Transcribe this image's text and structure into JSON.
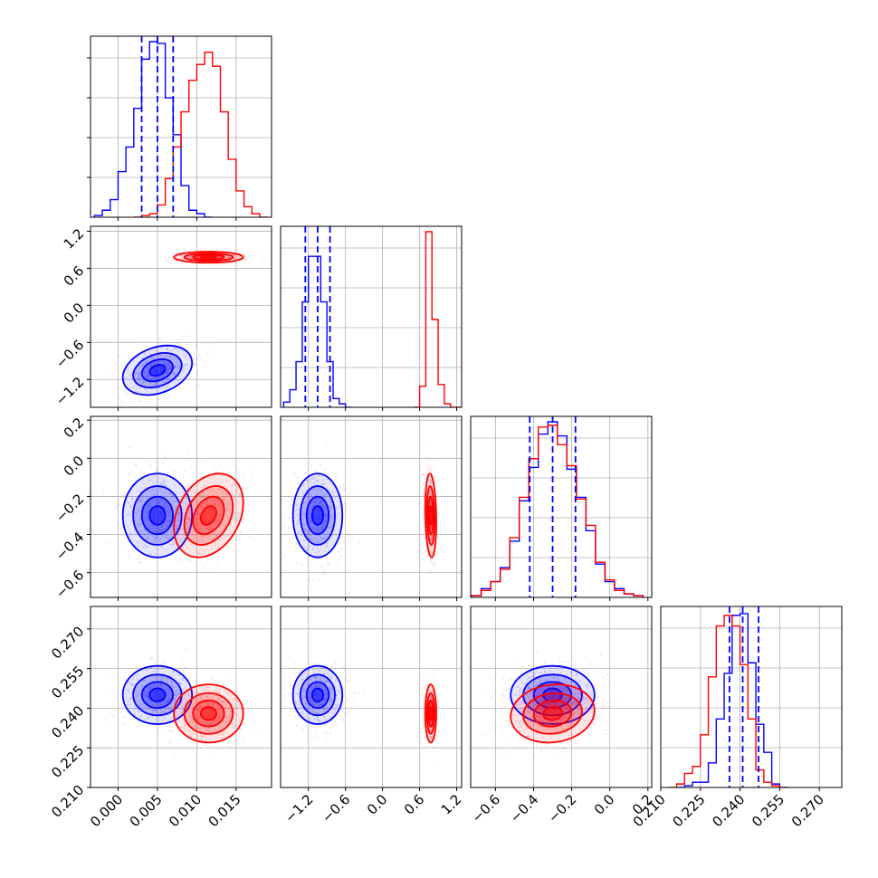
{
  "chart_data": {
    "type": "scatter",
    "title": "",
    "variant": "corner-plot",
    "grid": true,
    "parameters": [
      {
        "name": "",
        "range": [
          -0.0035,
          0.0195
        ],
        "ticks": [
          0.0,
          0.005,
          0.01,
          0.015
        ],
        "tick_labels": [
          "0.000",
          "0.005",
          "0.010",
          "0.015"
        ]
      },
      {
        "name": "",
        "range": [
          -1.65,
          1.28
        ],
        "ticks": [
          -1.2,
          -0.6,
          0.0,
          0.6,
          1.2
        ],
        "tick_labels": [
          "−1.2",
          "−0.6",
          "0.0",
          "0.6",
          "1.2"
        ]
      },
      {
        "name": "",
        "range": [
          -0.73,
          0.22
        ],
        "ticks": [
          -0.6,
          -0.4,
          -0.2,
          0.0,
          0.2
        ],
        "tick_labels": [
          "−0.6",
          "−0.4",
          "−0.2",
          "0.0",
          "0.2"
        ]
      },
      {
        "name": "",
        "range": [
          0.21,
          0.2785
        ],
        "ticks": [
          0.21,
          0.225,
          0.24,
          0.255,
          0.27
        ],
        "tick_labels": [
          "0.210",
          "0.225",
          "0.240",
          "0.255",
          "0.270"
        ]
      }
    ],
    "series": [
      {
        "color": "#0000ff",
        "mean": [
          0.005,
          -1.05,
          -0.3,
          0.245
        ],
        "sd": [
          0.0022,
          0.2,
          0.11,
          0.0055
        ],
        "quantiles": [
          [
            0.003,
            0.005,
            0.007
          ],
          [
            -1.25,
            -1.05,
            -0.85
          ],
          [
            -0.42,
            -0.3,
            -0.18
          ],
          [
            0.236,
            0.241,
            0.247
          ]
        ],
        "histograms": [
          {
            "x": [
              -0.0025,
              -0.0015,
              -0.0005,
              0.0005,
              0.0015,
              0.0025,
              0.0035,
              0.0045,
              0.0055,
              0.0065,
              0.0075,
              0.0085,
              0.0095,
              0.0105,
              0.0115
            ],
            "y": [
              0.01,
              0.04,
              0.1,
              0.26,
              0.4,
              0.62,
              0.9,
              1.0,
              0.99,
              0.68,
              0.47,
              0.18,
              0.04,
              0.02,
              0.0
            ]
          },
          {
            "x": [
              -1.55,
              -1.45,
              -1.35,
              -1.25,
              -1.15,
              -1.05,
              -0.95,
              -0.85,
              -0.75,
              -0.65,
              -0.55
            ],
            "y": [
              0.03,
              0.1,
              0.26,
              0.6,
              0.86,
              0.86,
              0.6,
              0.26,
              0.05,
              0.02,
              0.0
            ]
          },
          {
            "x": [
              -0.7,
              -0.65,
              -0.6,
              -0.55,
              -0.5,
              -0.45,
              -0.4,
              -0.35,
              -0.3,
              -0.25,
              -0.2,
              -0.15,
              -0.1,
              -0.05,
              0.0,
              0.05,
              0.1,
              0.15
            ],
            "y": [
              0.01,
              0.05,
              0.09,
              0.17,
              0.32,
              0.55,
              0.74,
              0.93,
              1.0,
              0.92,
              0.73,
              0.57,
              0.38,
              0.19,
              0.09,
              0.05,
              0.02,
              0.01
            ]
          },
          {
            "x": [
              0.2175,
              0.2205,
              0.2235,
              0.2265,
              0.2295,
              0.2325,
              0.2355,
              0.2385,
              0.2415,
              0.2445,
              0.2475,
              0.2505,
              0.2535,
              0.2565
            ],
            "y": [
              0.0,
              0.01,
              0.03,
              0.03,
              0.14,
              0.39,
              0.65,
              0.98,
              0.99,
              0.71,
              0.36,
              0.2,
              0.02,
              0.0
            ]
          }
        ]
      },
      {
        "color": "#ff0000",
        "mean": [
          0.0115,
          0.78,
          -0.3,
          0.238
        ],
        "sd": [
          0.0022,
          0.045,
          0.11,
          0.0055
        ],
        "histograms": [
          {
            "x": [
              0.0025,
              0.0035,
              0.0045,
              0.0055,
              0.0065,
              0.0075,
              0.0085,
              0.0095,
              0.0105,
              0.0115,
              0.0125,
              0.0135,
              0.0145,
              0.0155,
              0.0165,
              0.0175,
              0.0185
            ],
            "y": [
              0.0,
              0.01,
              0.02,
              0.07,
              0.22,
              0.4,
              0.6,
              0.78,
              0.87,
              0.94,
              0.86,
              0.6,
              0.33,
              0.15,
              0.06,
              0.02,
              0.0
            ]
          },
          {
            "x": [
              0.55,
              0.65,
              0.75,
              0.85,
              0.95,
              1.05,
              1.15,
              1.25
            ],
            "y": [
              0.0,
              0.12,
              1.0,
              0.5,
              0.13,
              0.02,
              0.0,
              0.0
            ]
          },
          {
            "x": [
              -0.7,
              -0.65,
              -0.6,
              -0.55,
              -0.5,
              -0.45,
              -0.4,
              -0.35,
              -0.3,
              -0.25,
              -0.2,
              -0.15,
              -0.1,
              -0.05,
              0.0,
              0.05,
              0.1,
              0.15
            ],
            "y": [
              0.01,
              0.04,
              0.09,
              0.16,
              0.34,
              0.57,
              0.79,
              0.97,
              0.98,
              0.87,
              0.75,
              0.56,
              0.41,
              0.2,
              0.1,
              0.04,
              0.02,
              0.01
            ]
          },
          {
            "x": [
              0.2145,
              0.2175,
              0.2205,
              0.2235,
              0.2265,
              0.2295,
              0.2325,
              0.2355,
              0.2385,
              0.2415,
              0.2445,
              0.2475,
              0.2505,
              0.2535,
              0.2565
            ],
            "y": [
              0.0,
              0.02,
              0.08,
              0.12,
              0.3,
              0.63,
              0.92,
              0.98,
              0.92,
              0.7,
              0.39,
              0.1,
              0.03,
              0.01,
              0.0
            ]
          }
        ]
      }
    ]
  }
}
